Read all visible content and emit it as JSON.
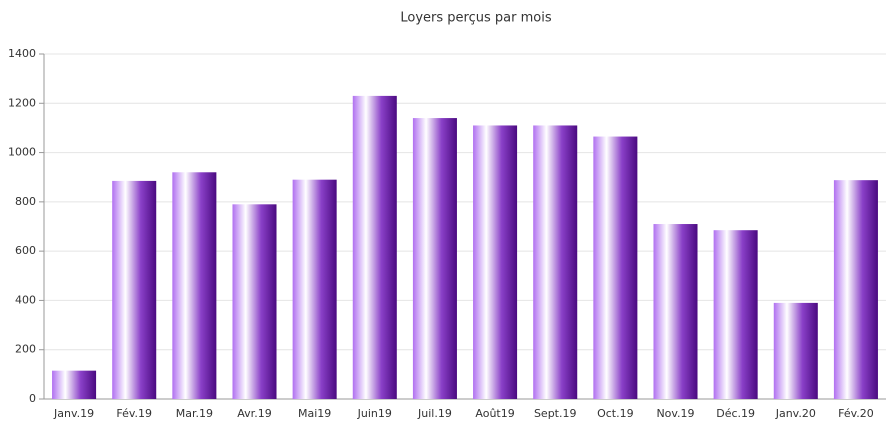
{
  "chart_data": {
    "type": "bar",
    "title": "Loyers perçus par mois",
    "categories": [
      "Janv.19",
      "Fév.19",
      "Mar.19",
      "Avr.19",
      "Mai19",
      "Juin19",
      "Juil.19",
      "Août19",
      "Sept.19",
      "Oct.19",
      "Nov.19",
      "Déc.19",
      "Janv.20",
      "Fév.20"
    ],
    "values": [
      115,
      885,
      920,
      790,
      890,
      1230,
      1140,
      1110,
      1110,
      1065,
      710,
      685,
      390,
      888
    ],
    "ylim": [
      0,
      1400
    ],
    "yticks": [
      0,
      200,
      400,
      600,
      800,
      1000,
      1200,
      1400
    ],
    "grid": true
  }
}
